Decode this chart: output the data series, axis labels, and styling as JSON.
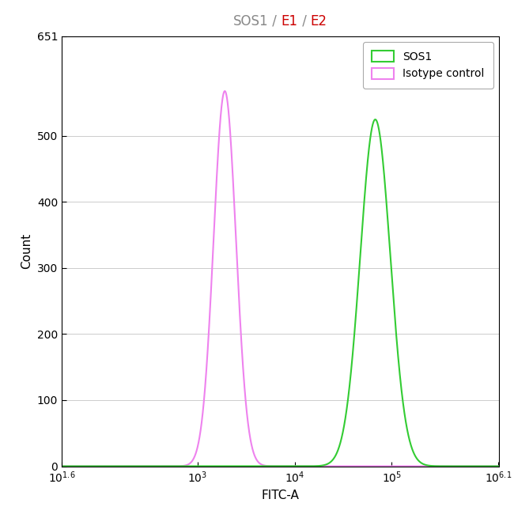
{
  "title_parts": [
    {
      "text": "SOS1",
      "color": "#888888"
    },
    {
      "text": " / ",
      "color": "#888888"
    },
    {
      "text": "E1",
      "color": "#cc0000"
    },
    {
      "text": " / ",
      "color": "#888888"
    },
    {
      "text": "E2",
      "color": "#cc0000"
    }
  ],
  "xlabel": "FITC-A",
  "ylabel": "Count",
  "ylim": [
    0,
    651
  ],
  "xlim_log": [
    1.6,
    6.1
  ],
  "yticks": [
    0,
    100,
    200,
    300,
    400,
    500
  ],
  "ytick_top": 651,
  "bg_color": "#ffffff",
  "grid_color": "#cccccc",
  "magenta_color": "#ee82ee",
  "green_color": "#33cc33",
  "magenta_peak_log": 3.28,
  "magenta_peak_height": 568,
  "magenta_sigma_log": 0.115,
  "green_peak_log": 4.83,
  "green_peak_height": 525,
  "green_sigma_log": 0.155,
  "legend_labels": [
    "SOS1",
    "Isotype control"
  ],
  "legend_colors": [
    "#33cc33",
    "#ee82ee"
  ],
  "title_fontsize": 12,
  "axis_fontsize": 11,
  "tick_fontsize": 10,
  "linewidth": 1.5
}
